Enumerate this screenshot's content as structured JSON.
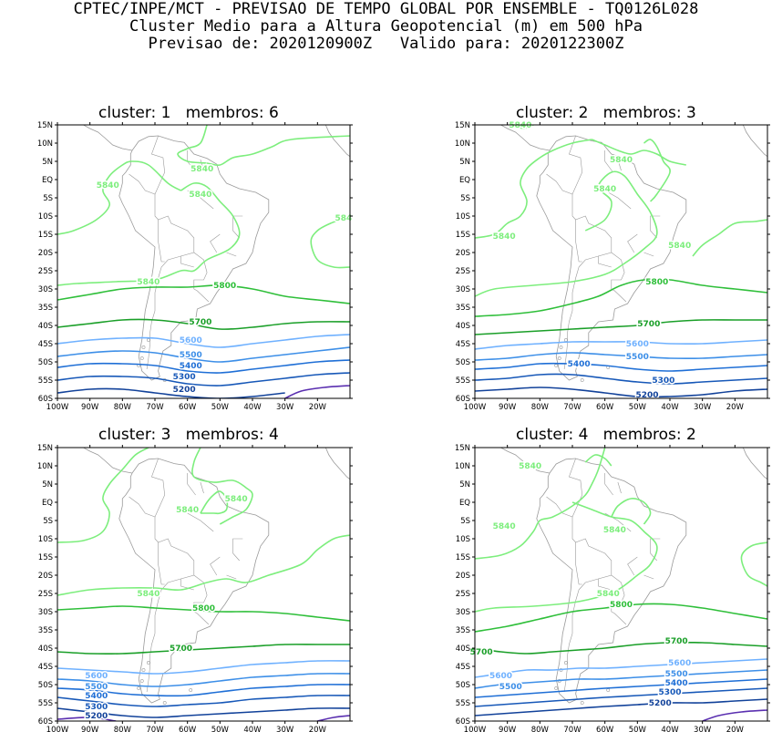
{
  "header": {
    "line1": "CPTEC/INPE/MCT - PREVISAO DE TEMPO GLOBAL POR ENSEMBLE - TQ0126L028",
    "line2": "Cluster Medio para a Altura Geopotencial (m) em 500 hPa",
    "line3": "Previsao de: 2020120900Z   Valido para: 2020122300Z"
  },
  "axes": {
    "lat_labels": [
      "15N",
      "10N",
      "5N",
      "EQ",
      "5S",
      "10S",
      "15S",
      "20S",
      "25S",
      "30S",
      "35S",
      "40S",
      "45S",
      "50S",
      "55S",
      "60S"
    ],
    "lon_labels": [
      "100W",
      "90W",
      "80W",
      "70W",
      "60W",
      "50W",
      "40W",
      "30W",
      "20W"
    ]
  },
  "colors": {
    "5840": "#7dee7d",
    "5800": "#2fbf3a",
    "5700": "#1a9f28",
    "5600": "#6fb1ff",
    "5500": "#3d8fe8",
    "5400": "#1f6fd6",
    "5300": "#1758b8",
    "5200": "#12429a",
    "5100": "#5a2fb0",
    "coast": "#9a9a9a"
  },
  "panels": [
    {
      "title": "cluster: 1   membros: 6",
      "contour_labels": [
        "5840",
        "5840",
        "5840",
        "584",
        "5840",
        "5800",
        "5700",
        "5600",
        "5500",
        "5400",
        "5300",
        "5200"
      ]
    },
    {
      "title": "cluster: 2   membros: 3",
      "contour_labels": [
        "5840",
        "5840",
        "5840",
        "5840",
        "5840",
        "5800",
        "5700",
        "5600",
        "5500",
        "5400",
        "5300",
        "5200"
      ]
    },
    {
      "title": "cluster: 3   membros: 4",
      "contour_labels": [
        "5840",
        "5840",
        "5840",
        "5800",
        "5700",
        "5600",
        "5500",
        "5400",
        "5300",
        "5200"
      ]
    },
    {
      "title": "cluster: 4   membros: 2",
      "contour_labels": [
        "5840",
        "5840",
        "5840",
        "5840",
        "5800",
        "5700",
        "5700",
        "5600",
        "5600",
        "5500",
        "5500",
        "5400",
        "5300",
        "5200"
      ]
    }
  ]
}
